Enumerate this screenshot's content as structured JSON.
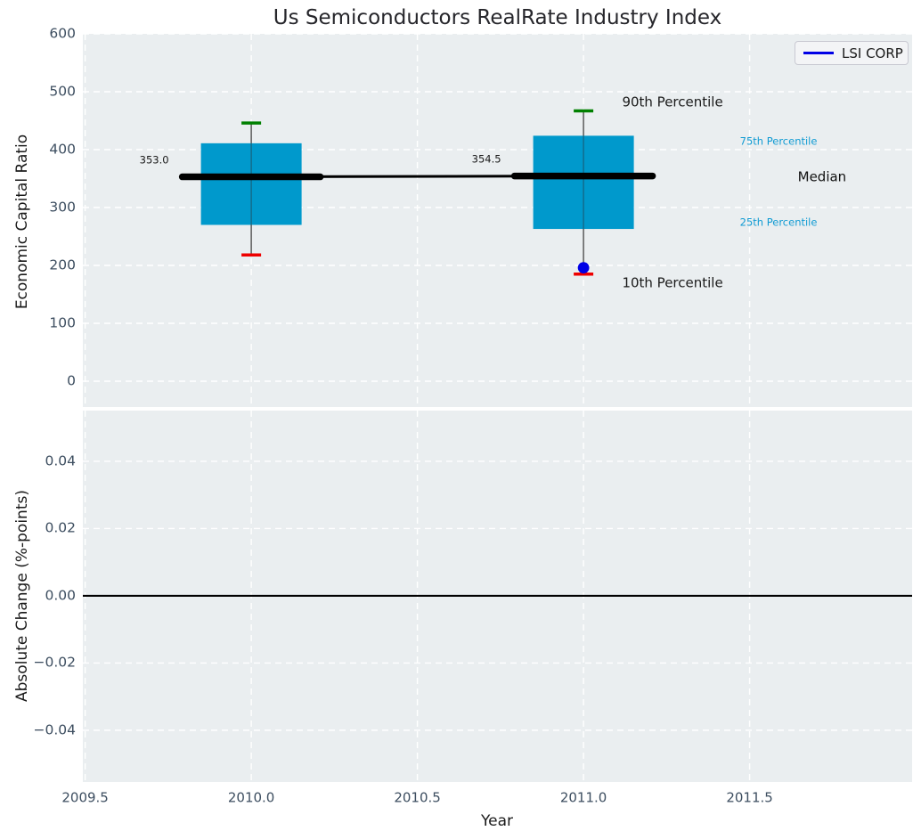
{
  "title": "Us Semiconductors RealRate Industry Index",
  "legend": {
    "label": "LSI CORP",
    "line_color": "#0000e6"
  },
  "colors": {
    "figure_bg": "#ffffff",
    "axes_bg": "#eaeef0",
    "grid": "#ffffff",
    "tick_label": "#3d4e60",
    "axis_label": "#1a1a1a",
    "title": "#26262b",
    "box_fill": "#0099cc",
    "whisker": "#5a5a5a",
    "cap_top": "#008000",
    "cap_bottom": "#ee0000",
    "median_line": "#000000",
    "zero_line": "#000000",
    "company_point": "#0000e6",
    "annotation_cyan": "#109bd3",
    "annotation_black": "#1a1a1a"
  },
  "chart_data": [
    {
      "type": "boxplot",
      "ylabel": "Economic Capital Ratio",
      "ylim": [
        -44.6,
        600
      ],
      "xlim": [
        2009.493,
        2011.989
      ],
      "yticks": [
        600,
        500,
        400,
        300,
        200,
        100,
        0
      ],
      "ytick_labels": [
        "600",
        "500",
        "400",
        "300",
        "200",
        "100",
        "0"
      ],
      "xticks": [
        2009.5,
        2010.0,
        2010.5,
        2011.0,
        2011.5
      ],
      "grid": true,
      "boxes": [
        {
          "year": 2010,
          "p10": 218,
          "p25": 270,
          "median": 353.0,
          "p75": 411,
          "p90": 446,
          "median_label": "353.0"
        },
        {
          "year": 2011,
          "p10": 185,
          "p25": 263,
          "median": 354.5,
          "p75": 424,
          "p90": 467,
          "median_label": "354.5"
        }
      ],
      "company_points": [
        {
          "name": "LSI CORP",
          "year": 2011,
          "value": 196
        }
      ],
      "annotations": [
        {
          "text": "90th Percentile",
          "x": 2011.268,
          "y": 481,
          "color": "#1a1a1a",
          "size": 15
        },
        {
          "text": "75th Percentile",
          "x": 2011.587,
          "y": 414,
          "color": "#109bd3",
          "size": 11.5
        },
        {
          "text": "Median",
          "x": 2011.718,
          "y": 352,
          "color": "#111111",
          "size": 15
        },
        {
          "text": "25th Percentile",
          "x": 2011.587,
          "y": 274,
          "color": "#109bd3",
          "size": 11.5
        },
        {
          "text": "10th Percentile",
          "x": 2011.268,
          "y": 170,
          "color": "#1a1a1a",
          "size": 15
        }
      ],
      "legend_position": "upper right"
    },
    {
      "type": "line",
      "ylabel": "Absolute Change (%-points)",
      "xlabel": "Year",
      "ylim": [
        -0.0554,
        0.0551
      ],
      "xlim": [
        2009.493,
        2011.989
      ],
      "yticks": [
        0.04,
        0.02,
        0.0,
        -0.02,
        -0.04
      ],
      "ytick_labels": [
        "0.04",
        "0.02",
        "0.00",
        "−0.02",
        "−0.04"
      ],
      "xticks": [
        2009.5,
        2010.0,
        2010.5,
        2011.0,
        2011.5
      ],
      "xtick_labels": [
        "2009.5",
        "2010.0",
        "2010.5",
        "2011.0",
        "2011.5"
      ],
      "grid": true,
      "zero_line": 0.0
    }
  ]
}
